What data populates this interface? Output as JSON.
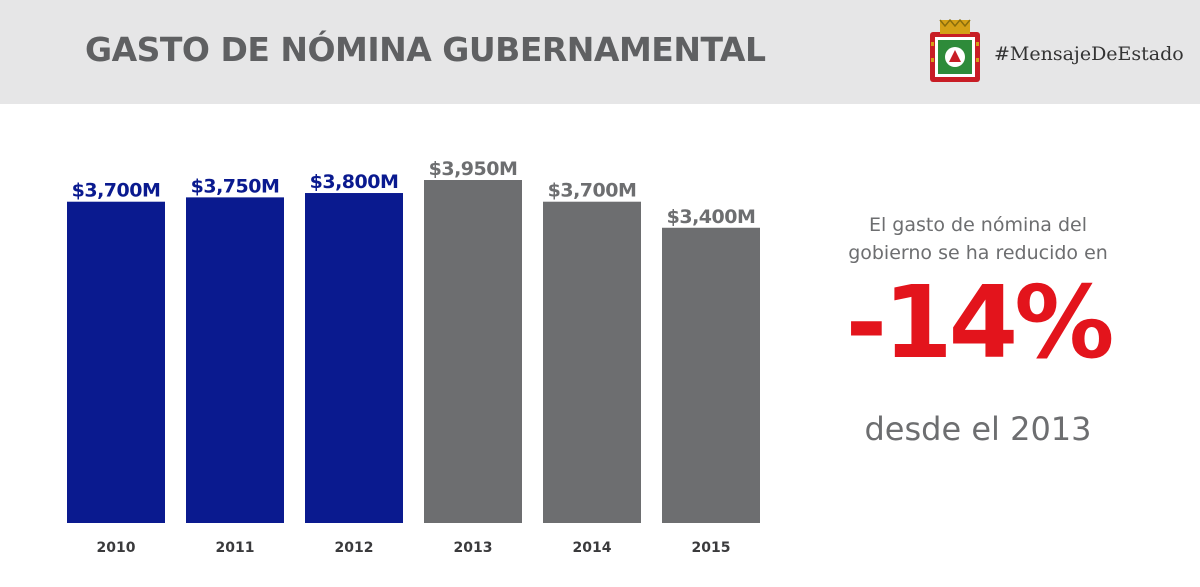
{
  "header": {
    "title": "GASTO DE NÓMINA GUBERNAMENTAL",
    "hashtag": "#MensajeDeEstado",
    "seal_icon": "puerto-rico-seal"
  },
  "chart_data": {
    "type": "bar",
    "categories": [
      "2010",
      "2011",
      "2012",
      "2013",
      "2014",
      "2015"
    ],
    "values": [
      3700,
      3750,
      3800,
      3950,
      3700,
      3400
    ],
    "value_labels": [
      "$3,700M",
      "$3,750M",
      "$3,800M",
      "$3,950M",
      "$3,700M",
      "$3,400M"
    ],
    "colors": [
      "#0a1a8f",
      "#0a1a8f",
      "#0a1a8f",
      "#6d6e70",
      "#6d6e70",
      "#6d6e70"
    ],
    "label_colors": [
      "#0a1a8f",
      "#0a1a8f",
      "#0a1a8f",
      "#6d6e70",
      "#6d6e70",
      "#6d6e70"
    ],
    "ylim": [
      0,
      4000
    ],
    "grid": false
  },
  "annotation": {
    "line1": "El gasto de nómina del",
    "line2": "gobierno se ha reducido en",
    "percent": "-14%",
    "line3": "desde el 2013",
    "percent_color": "#e3141c"
  }
}
